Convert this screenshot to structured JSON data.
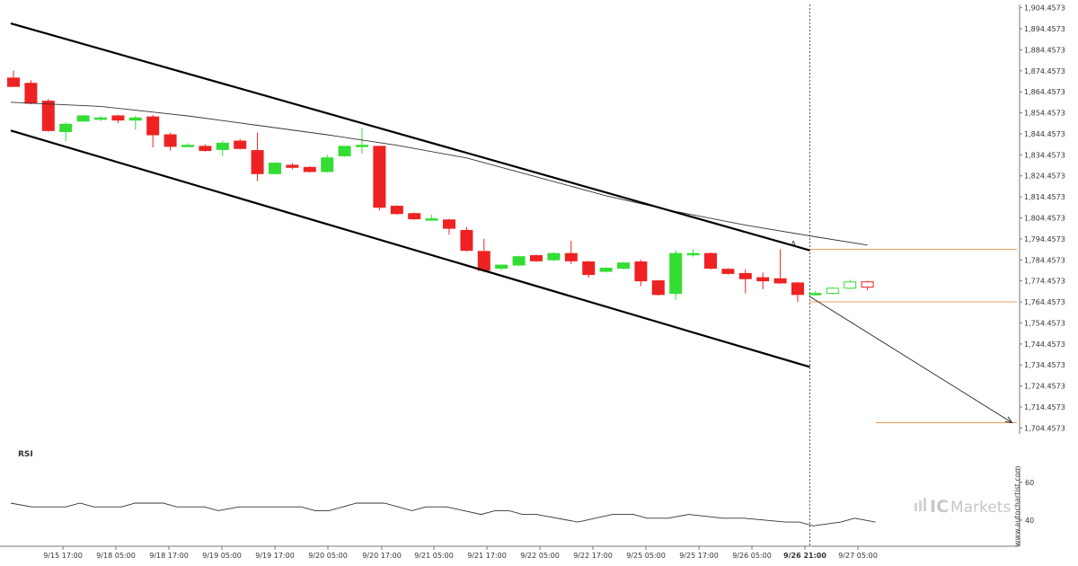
{
  "chart_data": [
    {
      "type": "candlestick",
      "y_axis_ticks": [
        "1,904.4573",
        "1,894.4573",
        "1,884.4573",
        "1,874.4573",
        "1,864.4573",
        "1,854.4573",
        "1,844.4573",
        "1,834.4573",
        "1,824.4573",
        "1,814.4573",
        "1,804.4573",
        "1,794.4573",
        "1,784.4573",
        "1,774.4573",
        "1,764.4573",
        "1,754.4573",
        "1,744.4573",
        "1,734.4573",
        "1,724.4573",
        "1,714.4573",
        "1,704.4573"
      ],
      "ylim": [
        1702.5,
        1906
      ],
      "x_ticks": [
        "9/15 17:00",
        "9/18 05:00",
        "9/18 17:00",
        "9/19 05:00",
        "9/19 17:00",
        "9/20 05:00",
        "9/20 17:00",
        "9/21 05:00",
        "9/21 17:00",
        "9/22 05:00",
        "9/22 17:00",
        "9/25 05:00",
        "9/25 17:00",
        "9/26 05:00",
        "9/26 21:00",
        "9/27 05:00"
      ],
      "x_tick_bold": "9/26 21:00",
      "candles": [
        {
          "o": 1871.0,
          "h": 1874.5,
          "c": 1867.0,
          "l": 1867.0
        },
        {
          "o": 1868.5,
          "h": 1870.0,
          "c": 1859.0,
          "l": 1858.5
        },
        {
          "o": 1860.0,
          "h": 1861.0,
          "c": 1846.0,
          "l": 1845.5
        },
        {
          "o": 1845.5,
          "h": 1850.0,
          "c": 1849.0,
          "l": 1841.0
        },
        {
          "o": 1850.5,
          "h": 1853.5,
          "c": 1853.0,
          "l": 1850.5
        },
        {
          "o": 1852.0,
          "h": 1853.0,
          "c": 1852.0,
          "l": 1850.5
        },
        {
          "o": 1853.0,
          "h": 1853.5,
          "c": 1851.0,
          "l": 1849.5
        },
        {
          "o": 1851.0,
          "h": 1853.0,
          "c": 1852.0,
          "l": 1846.5
        },
        {
          "o": 1852.5,
          "h": 1853.5,
          "c": 1844.0,
          "l": 1838.0
        },
        {
          "o": 1844.0,
          "h": 1845.0,
          "c": 1838.5,
          "l": 1836.5
        },
        {
          "o": 1839.0,
          "h": 1840.0,
          "c": 1839.0,
          "l": 1839.0
        },
        {
          "o": 1838.5,
          "h": 1839.5,
          "c": 1836.5,
          "l": 1836.0
        },
        {
          "o": 1837.0,
          "h": 1841.0,
          "c": 1840.0,
          "l": 1834.0
        },
        {
          "o": 1841.0,
          "h": 1842.0,
          "c": 1837.5,
          "l": 1837.0
        },
        {
          "o": 1836.5,
          "h": 1845.0,
          "c": 1825.5,
          "l": 1822.0
        },
        {
          "o": 1825.5,
          "h": 1831.0,
          "c": 1830.5,
          "l": 1825.5
        },
        {
          "o": 1829.5,
          "h": 1830.5,
          "c": 1828.5,
          "l": 1827.5
        },
        {
          "o": 1828.5,
          "h": 1829.0,
          "c": 1826.5,
          "l": 1826.0
        },
        {
          "o": 1826.5,
          "h": 1834.5,
          "c": 1833.0,
          "l": 1826.0
        },
        {
          "o": 1834.0,
          "h": 1838.0,
          "c": 1838.5,
          "l": 1833.5
        },
        {
          "o": 1838.5,
          "h": 1847.0,
          "c": 1839.0,
          "l": 1835.0
        },
        {
          "o": 1838.5,
          "h": 1838.5,
          "c": 1809.5,
          "l": 1808.0
        },
        {
          "o": 1810.0,
          "h": 1810.5,
          "c": 1806.5,
          "l": 1806.0
        },
        {
          "o": 1806.5,
          "h": 1807.0,
          "c": 1804.0,
          "l": 1803.5
        },
        {
          "o": 1803.5,
          "h": 1806.0,
          "c": 1804.0,
          "l": 1803.0
        },
        {
          "o": 1803.5,
          "h": 1804.0,
          "c": 1799.5,
          "l": 1796.5
        },
        {
          "o": 1798.5,
          "h": 1800.0,
          "c": 1789.0,
          "l": 1788.5
        },
        {
          "o": 1788.5,
          "h": 1794.5,
          "c": 1779.5,
          "l": 1778.5
        },
        {
          "o": 1780.5,
          "h": 1782.0,
          "c": 1782.0,
          "l": 1779.5
        },
        {
          "o": 1782.0,
          "h": 1786.5,
          "c": 1786.0,
          "l": 1781.5
        },
        {
          "o": 1786.5,
          "h": 1787.0,
          "c": 1784.0,
          "l": 1783.5
        },
        {
          "o": 1784.5,
          "h": 1788.0,
          "c": 1787.5,
          "l": 1784.0
        },
        {
          "o": 1787.5,
          "h": 1793.5,
          "c": 1784.0,
          "l": 1782.5
        },
        {
          "o": 1783.5,
          "h": 1784.0,
          "c": 1777.5,
          "l": 1776.0
        },
        {
          "o": 1779.0,
          "h": 1781.0,
          "c": 1780.5,
          "l": 1778.5
        },
        {
          "o": 1780.5,
          "h": 1783.5,
          "c": 1783.0,
          "l": 1780.0
        },
        {
          "o": 1783.5,
          "h": 1784.5,
          "c": 1774.5,
          "l": 1772.0
        },
        {
          "o": 1774.5,
          "h": 1775.0,
          "c": 1768.0,
          "l": 1767.5
        },
        {
          "o": 1768.5,
          "h": 1789.0,
          "c": 1787.5,
          "l": 1765.5
        },
        {
          "o": 1787.5,
          "h": 1789.5,
          "c": 1787.5,
          "l": 1786.0
        },
        {
          "o": 1787.5,
          "h": 1788.0,
          "c": 1780.5,
          "l": 1780.0
        },
        {
          "o": 1780.0,
          "h": 1780.5,
          "c": 1778.0,
          "l": 1777.5
        },
        {
          "o": 1778.0,
          "h": 1780.0,
          "c": 1775.5,
          "l": 1768.5
        },
        {
          "o": 1776.0,
          "h": 1778.5,
          "c": 1774.5,
          "l": 1770.5
        },
        {
          "o": 1775.5,
          "h": 1789.5,
          "c": 1773.5,
          "l": 1773.0
        },
        {
          "o": 1773.5,
          "h": 1774.0,
          "c": 1768.0,
          "l": 1764.5
        },
        {
          "o": 1768.5,
          "h": 1769.5,
          "c": 1768.5,
          "l": 1767.5
        },
        {
          "o": 1768.5,
          "h": 1771.5,
          "c": 1771.0,
          "l": 1768.0
        },
        {
          "o": 1771.0,
          "h": 1775.0,
          "c": 1774.0,
          "l": 1770.5
        },
        {
          "o": 1774.0,
          "h": 1774.5,
          "c": 1771.5,
          "l": 1770.0
        }
      ],
      "pattern_lines": [
        {
          "x0": 0,
          "y0": 1897.0,
          "x1": 45.8,
          "y1": 1789.0
        },
        {
          "x0": 0,
          "y0": 1846.0,
          "x1": 45.8,
          "y1": 1733.5
        }
      ],
      "moving_average": [
        {
          "x": 0,
          "y": 1859.5
        },
        {
          "x": 5,
          "y": 1857.5
        },
        {
          "x": 10,
          "y": 1853.0
        },
        {
          "x": 14,
          "y": 1848.5
        },
        {
          "x": 18,
          "y": 1844.0
        },
        {
          "x": 22,
          "y": 1839.0
        },
        {
          "x": 26,
          "y": 1833.0
        },
        {
          "x": 30,
          "y": 1824.0
        },
        {
          "x": 34,
          "y": 1815.0
        },
        {
          "x": 38,
          "y": 1807.5
        },
        {
          "x": 42,
          "y": 1801.0
        },
        {
          "x": 46,
          "y": 1795.5
        },
        {
          "x": 49,
          "y": 1791.5
        }
      ],
      "levels": [
        1789.5,
        1764.5,
        1707.0
      ],
      "projection": {
        "x0": 45.8,
        "y0": 1767.0,
        "x1": 57.3,
        "y1": 1707.0
      },
      "last_candle_index": 45.8,
      "marker_label": "A",
      "colors": {
        "bull": "#33dd33",
        "bear": "#ee2222",
        "hollow": "#ffffff",
        "channel": "#000000",
        "level": "#e8a060",
        "ma": "#333333",
        "grid_axis": "#777777"
      }
    },
    {
      "type": "line",
      "title": "RSI",
      "y_ticks": [
        "60",
        "40"
      ],
      "ylim": [
        30,
        68
      ],
      "values": [
        {
          "x": 0,
          "y": 49
        },
        {
          "x": 1.5,
          "y": 47
        },
        {
          "x": 4,
          "y": 47
        },
        {
          "x": 5,
          "y": 49
        },
        {
          "x": 6,
          "y": 47
        },
        {
          "x": 8,
          "y": 47
        },
        {
          "x": 9,
          "y": 49
        },
        {
          "x": 11,
          "y": 49
        },
        {
          "x": 12,
          "y": 47
        },
        {
          "x": 14,
          "y": 47
        },
        {
          "x": 15,
          "y": 45
        },
        {
          "x": 16.5,
          "y": 47
        },
        {
          "x": 21,
          "y": 47
        },
        {
          "x": 22,
          "y": 45
        },
        {
          "x": 23,
          "y": 45
        },
        {
          "x": 25,
          "y": 49
        },
        {
          "x": 27,
          "y": 49
        },
        {
          "x": 29,
          "y": 45
        },
        {
          "x": 30,
          "y": 47
        },
        {
          "x": 31.5,
          "y": 47
        },
        {
          "x": 34,
          "y": 43
        },
        {
          "x": 35,
          "y": 45
        },
        {
          "x": 36,
          "y": 45
        },
        {
          "x": 37,
          "y": 43
        },
        {
          "x": 38,
          "y": 43
        },
        {
          "x": 41,
          "y": 39
        },
        {
          "x": 43.5,
          "y": 43
        },
        {
          "x": 45,
          "y": 43
        },
        {
          "x": 46,
          "y": 41
        },
        {
          "x": 47.5,
          "y": 41
        },
        {
          "x": 49,
          "y": 43
        },
        {
          "x": 51.5,
          "y": 41
        },
        {
          "x": 53,
          "y": 41
        },
        {
          "x": 56,
          "y": 39
        },
        {
          "x": 57,
          "y": 39
        },
        {
          "x": 58,
          "y": 37
        },
        {
          "x": 60,
          "y": 39
        },
        {
          "x": 61,
          "y": 41
        },
        {
          "x": 62.5,
          "y": 39
        }
      ],
      "color": "#333333"
    }
  ],
  "branding": {
    "watermark": "www.autochartist.com",
    "logo_ic": "IC",
    "logo_markets": "Markets"
  }
}
